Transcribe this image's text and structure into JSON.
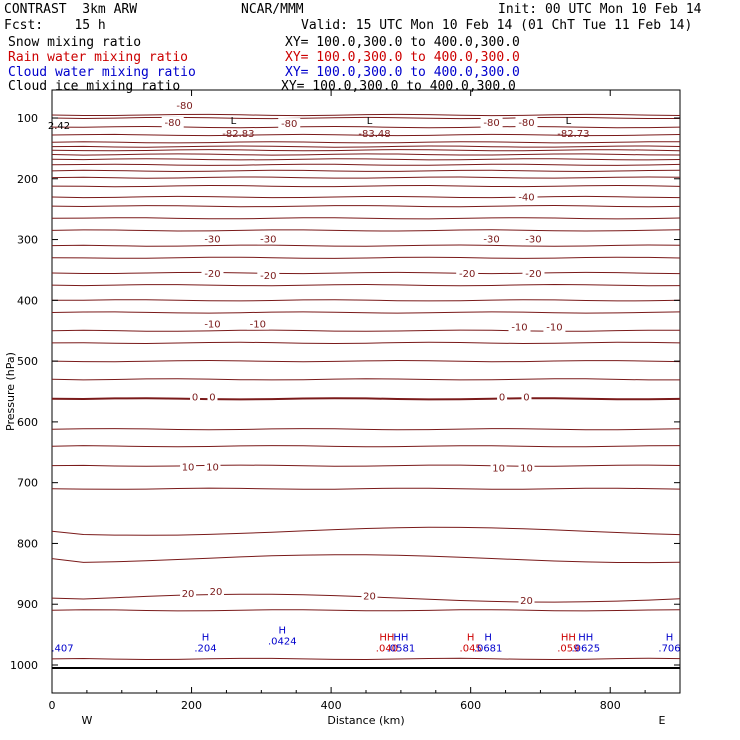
{
  "header": {
    "model": "CONTRAST  3km ARW",
    "center": "NCAR/MMM",
    "init": "Init: 00 UTC Mon 10 Feb 14",
    "fcst": "Fcst:    15 h",
    "valid": "Valid: 15 UTC Mon 10 Feb 14 (01 ChT Tue 11 Feb 14)"
  },
  "fields": [
    {
      "name": "Snow mixing ratio",
      "xy": "XY= 100.0,300.0 to 400.0,300.0",
      "color": "#000000"
    },
    {
      "name": "Rain water mixing ratio",
      "xy": "XY= 100.0,300.0 to 400.0,300.0",
      "color": "#cc0000"
    },
    {
      "name": "Cloud water mixing ratio",
      "xy": "XY= 100.0,300.0 to 400.0,300.0",
      "color": "#0000cc"
    },
    {
      "name": "Cloud ice mixing ratio",
      "xy": "XY= 100.0,300.0 to 400.0,300.0",
      "color": "#000000"
    }
  ],
  "chart_data": {
    "type": "contour",
    "xlabel": "Distance (km)",
    "ylabel": "Pressure (hPa)",
    "xlim": [
      0,
      900
    ],
    "ylim": [
      1000,
      60
    ],
    "x_ticks": [
      0,
      200,
      400,
      600,
      800
    ],
    "y_ticks": [
      100,
      200,
      300,
      400,
      500,
      600,
      700,
      800,
      900,
      1000
    ],
    "x_end_labels": {
      "left": "W",
      "right": "E"
    },
    "temperature_contour_color": "#7a1a1a",
    "temperature_labels": [
      {
        "text": "-80",
        "x": 190,
        "p": 80
      },
      {
        "text": "-80",
        "x": 173,
        "p": 108
      },
      {
        "text": "-80",
        "x": 340,
        "p": 110
      },
      {
        "text": "-80",
        "x": 630,
        "p": 108
      },
      {
        "text": "-80",
        "x": 680,
        "p": 108
      },
      {
        "text": "-40",
        "x": 680,
        "p": 231
      },
      {
        "text": "-30",
        "x": 230,
        "p": 300
      },
      {
        "text": "-30",
        "x": 310,
        "p": 300
      },
      {
        "text": "-30",
        "x": 630,
        "p": 300
      },
      {
        "text": "-30",
        "x": 690,
        "p": 300
      },
      {
        "text": "-20",
        "x": 230,
        "p": 357
      },
      {
        "text": "-20",
        "x": 310,
        "p": 360
      },
      {
        "text": "-20",
        "x": 595,
        "p": 357
      },
      {
        "text": "-20",
        "x": 690,
        "p": 357
      },
      {
        "text": "-10",
        "x": 230,
        "p": 440
      },
      {
        "text": "-10",
        "x": 295,
        "p": 440
      },
      {
        "text": "-10",
        "x": 670,
        "p": 445
      },
      {
        "text": "-10",
        "x": 720,
        "p": 445
      },
      {
        "text": "0",
        "x": 205,
        "p": 560
      },
      {
        "text": "0",
        "x": 230,
        "p": 560
      },
      {
        "text": "0",
        "x": 645,
        "p": 560
      },
      {
        "text": "0",
        "x": 680,
        "p": 560
      },
      {
        "text": "10",
        "x": 195,
        "p": 675
      },
      {
        "text": "10",
        "x": 230,
        "p": 675
      },
      {
        "text": "10",
        "x": 640,
        "p": 677
      },
      {
        "text": "10",
        "x": 680,
        "p": 677
      },
      {
        "text": "20",
        "x": 195,
        "p": 883
      },
      {
        "text": "20",
        "x": 235,
        "p": 880
      },
      {
        "text": "20",
        "x": 455,
        "p": 887
      },
      {
        "text": "20",
        "x": 680,
        "p": 895
      }
    ],
    "lows": [
      {
        "text": "L",
        "value": "-82.83",
        "x": 260,
        "p": 90
      },
      {
        "text": "L",
        "value": "-83.48",
        "x": 455,
        "p": 90
      },
      {
        "text": "L",
        "value": "-82.73",
        "x": 740,
        "p": 90
      }
    ],
    "highs": [
      {
        "label": "H",
        "value": ".0424",
        "x": 330,
        "p": 948,
        "color": "#0000cc"
      },
      {
        "label": "H",
        "value": ".204",
        "x": 220,
        "p": 960,
        "color": "#0000cc"
      },
      {
        "label": "HH",
        "value": ".040",
        "x": 480,
        "p": 960,
        "color": "#cc0000"
      },
      {
        "label": "HH",
        "value": ".0581",
        "x": 500,
        "p": 960,
        "color": "#0000cc"
      },
      {
        "label": "H",
        "value": ".045",
        "x": 600,
        "p": 960,
        "color": "#cc0000"
      },
      {
        "label": "H",
        "value": ".0681",
        "x": 625,
        "p": 960,
        "color": "#0000cc"
      },
      {
        "label": "HH",
        "value": ".059",
        "x": 740,
        "p": 960,
        "color": "#cc0000"
      },
      {
        "label": "HH",
        "value": ".0625",
        "x": 765,
        "p": 960,
        "color": "#0000cc"
      },
      {
        "label": "H",
        "value": ".706",
        "x": 885,
        "p": 960,
        "color": "#0000cc"
      },
      {
        "label": "",
        "value": ".407",
        "x": 15,
        "p": 960,
        "color": "#0000cc"
      },
      {
        "label": "",
        "value": "2.42",
        "x": 10,
        "p": 100,
        "color": "#000000"
      }
    ]
  }
}
